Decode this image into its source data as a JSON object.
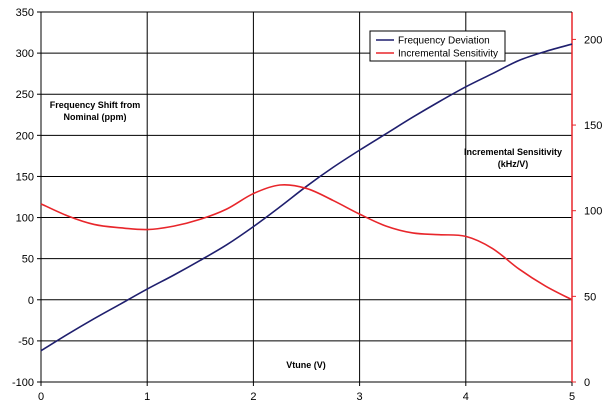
{
  "chart_data": {
    "type": "line",
    "title": "",
    "xlabel": "Vtune (V)",
    "ylabel_left_lines": [
      "Frequency Shift from",
      "Nominal (ppm)"
    ],
    "ylabel_right_lines": [
      "Incremental Sensitivity",
      "(kHz/V)"
    ],
    "xlim": [
      0,
      5
    ],
    "ylim_left": [
      -100,
      350
    ],
    "ylim_right": [
      0,
      216
    ],
    "x_ticks": [
      "0",
      "1",
      "2",
      "3",
      "4",
      "5"
    ],
    "y_left_ticks": [
      "-100",
      "-50",
      "0",
      "50",
      "100",
      "150",
      "200",
      "250",
      "300",
      "350"
    ],
    "y_right_ticks": [
      "0",
      "50",
      "100",
      "150",
      "200"
    ],
    "grid": true,
    "legend_position": "top-right",
    "series": [
      {
        "name": "Frequency Deviation",
        "axis": "left",
        "color": "#1f1f6e",
        "x": [
          0,
          0.25,
          0.5,
          0.75,
          1.0,
          1.25,
          1.5,
          1.75,
          2.0,
          2.25,
          2.5,
          2.75,
          3.0,
          3.25,
          3.5,
          3.75,
          4.0,
          4.25,
          4.5,
          4.75,
          5.0
        ],
        "values": [
          -62,
          -42,
          -23,
          -5,
          13,
          30,
          48,
          67,
          89,
          113,
          138,
          161,
          182,
          202,
          222,
          241,
          259,
          275,
          291,
          302,
          311
        ]
      },
      {
        "name": "Incremental Sensitivity",
        "axis": "right",
        "color": "#e8262b",
        "x": [
          0,
          0.25,
          0.5,
          0.75,
          1.0,
          1.25,
          1.5,
          1.75,
          2.0,
          2.25,
          2.5,
          2.75,
          3.0,
          3.25,
          3.5,
          3.75,
          4.0,
          4.25,
          4.5,
          4.75,
          5.0
        ],
        "values": [
          104,
          97,
          92,
          90,
          89,
          91,
          95,
          101,
          110,
          115,
          113,
          106,
          98,
          91,
          87,
          86,
          85,
          78,
          66,
          56,
          48
        ]
      }
    ]
  }
}
